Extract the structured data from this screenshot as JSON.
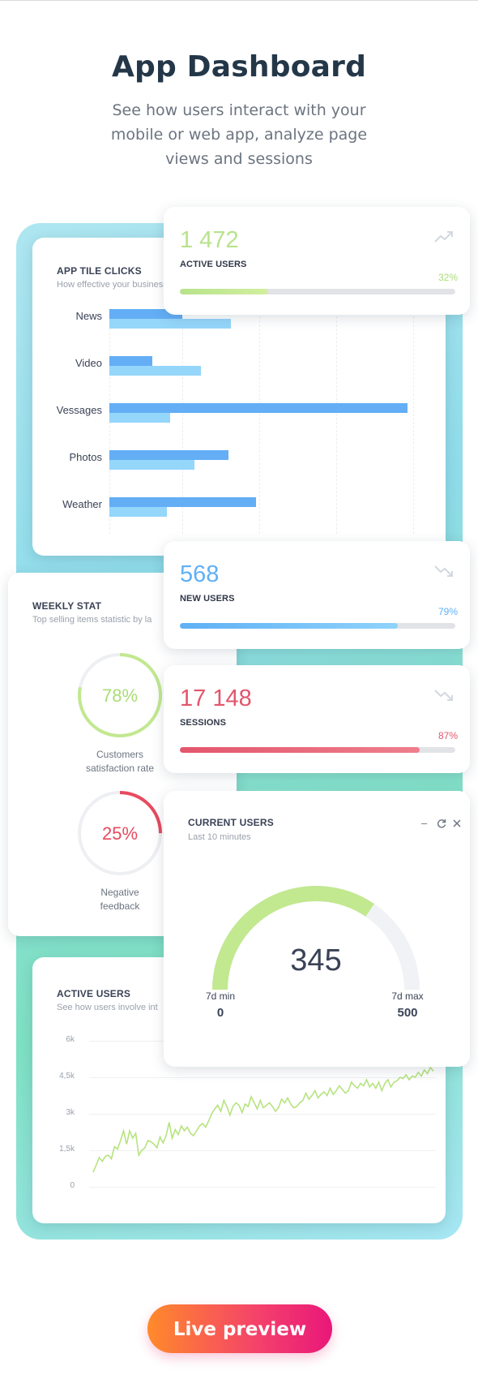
{
  "hero": {
    "title": "App Dashboard",
    "subtitle": "See how users interact with your mobile or web app, analyze page views and sessions"
  },
  "tile_clicks": {
    "title": "APP TILE CLICKS",
    "subtitle": "How effective your business",
    "chart_data": {
      "type": "bar",
      "orientation": "horizontal",
      "categories": [
        "News",
        "Video",
        "Messages",
        "Photos",
        "Weather"
      ],
      "category_labels_shown": [
        "News",
        "Video",
        "Vessages",
        "Photos",
        "Weather"
      ],
      "series": [
        {
          "values": [
            90,
            53,
            368,
            147,
            181
          ],
          "color": "#63aef5"
        },
        {
          "values": [
            150,
            113,
            75,
            105,
            71
          ],
          "color": "#95d6fb"
        }
      ],
      "grid": true
    }
  },
  "stats": [
    {
      "value": "1 472",
      "label": "ACTIVE USERS",
      "percent": "32%",
      "fill": 0.32,
      "color": "#b7e38b",
      "trend": "trend-up-icon"
    },
    {
      "value": "568",
      "label": "NEW USERS",
      "percent": "79%",
      "fill": 0.79,
      "color": "#5fb0f5",
      "trend": "trend-down-icon"
    },
    {
      "value": "17 148",
      "label": "SESSIONS",
      "percent": "87%",
      "fill": 0.87,
      "color": "#e3566c",
      "trend": "trend-down-icon"
    }
  ],
  "weekly": {
    "title": "WEEKLY STAT",
    "subtitle": "Top selling items statistic by la",
    "donuts": [
      {
        "value": "78%",
        "fraction": 0.78,
        "color": "#c2e890",
        "text_color": "#a9dd75",
        "label_line1": "Customers",
        "label_line2": "satisfaction rate"
      },
      {
        "value": "25%",
        "fraction": 0.25,
        "color": "#e84a5f",
        "text_color": "#e84a5f",
        "label_line1": "Negative",
        "label_line2": "feedback"
      }
    ]
  },
  "current_users": {
    "title": "CURRENT USERS",
    "subtitle": "Last 10 minutes",
    "value": "345",
    "min_label": "7d min",
    "min_value": "0",
    "max_label": "7d max",
    "max_value": "500",
    "fraction": 0.69,
    "controls": [
      "minimize-icon",
      "refresh-icon",
      "close-icon"
    ]
  },
  "active_users_chart": {
    "title": "ACTIVE USERS",
    "subtitle": "See how users involve int",
    "chart_data": {
      "type": "line",
      "y_tick_labels": [
        "6k",
        "4,5k",
        "3k",
        "1,5k",
        "0"
      ],
      "ylim": [
        0,
        6000
      ],
      "grid": true,
      "color": "#b6e37f",
      "values": [
        600,
        900,
        1200,
        1050,
        1250,
        1300,
        1150,
        1650,
        1550,
        1900,
        2300,
        1750,
        2300,
        2000,
        2200,
        1300,
        1500,
        1600,
        1900,
        1850,
        1750,
        1600,
        2050,
        1800,
        2100,
        2650,
        2000,
        2350,
        2150,
        2500,
        2300,
        2450,
        2200,
        2100,
        2300,
        2500,
        2600,
        2450,
        2700,
        3000,
        3200,
        3350,
        3100,
        3550,
        3300,
        2950,
        3300,
        3450,
        3350,
        3050,
        3400,
        3300,
        3700,
        3450,
        3200,
        3550,
        3250,
        3350,
        3450,
        3300,
        3100,
        3250,
        3600,
        3450,
        3650,
        3400,
        3250,
        3300,
        3450,
        3550,
        3850,
        3600,
        3750,
        3950,
        3650,
        3800,
        3900,
        3750,
        4050,
        3800,
        3950,
        4150,
        4000,
        3850,
        3950,
        4300,
        4150,
        4050,
        4250,
        4150,
        4400,
        4100,
        4250,
        4050,
        4300,
        3950,
        4250,
        4400,
        4100,
        4300,
        4350,
        4500,
        4450,
        4600,
        4400,
        4550,
        4500,
        4700,
        4550,
        4800,
        4650,
        4900,
        4750
      ]
    }
  },
  "cta": {
    "label": "Live preview"
  }
}
